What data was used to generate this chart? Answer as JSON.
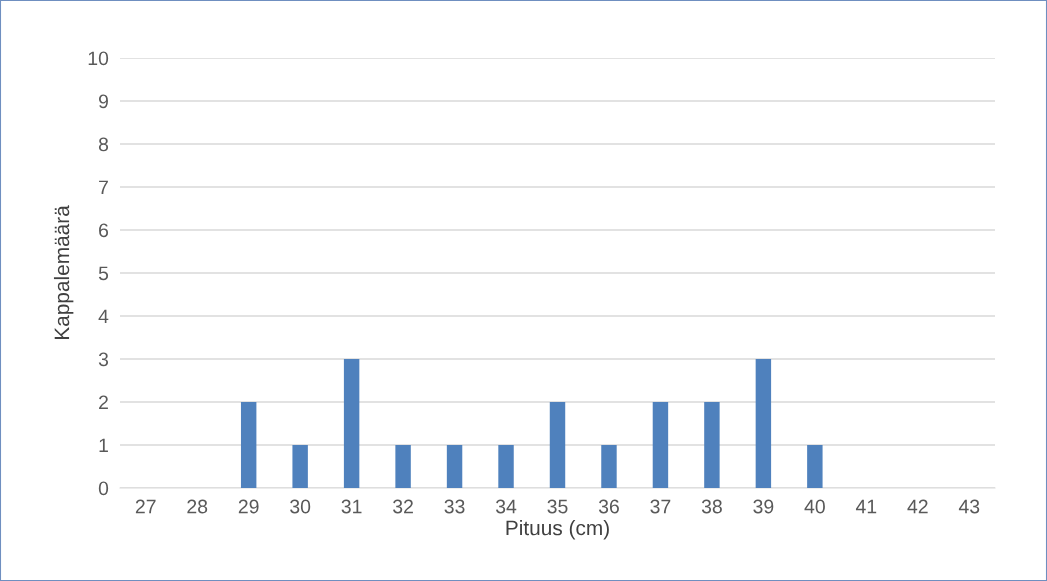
{
  "chart_data": {
    "type": "bar",
    "xlabel": "Pituus (cm)",
    "ylabel": "Kappalemäärä",
    "categories": [
      "27",
      "28",
      "29",
      "30",
      "31",
      "32",
      "33",
      "34",
      "35",
      "36",
      "37",
      "38",
      "39",
      "40",
      "41",
      "42",
      "43"
    ],
    "values": [
      0,
      0,
      2,
      1,
      3,
      1,
      1,
      1,
      2,
      1,
      2,
      2,
      3,
      1,
      0,
      0,
      0
    ],
    "color": "#4f81bd",
    "ylim": [
      0,
      10
    ],
    "yticks": [
      0,
      1,
      2,
      3,
      4,
      5,
      6,
      7,
      8,
      9,
      10
    ],
    "grid": "y",
    "legend": false
  }
}
